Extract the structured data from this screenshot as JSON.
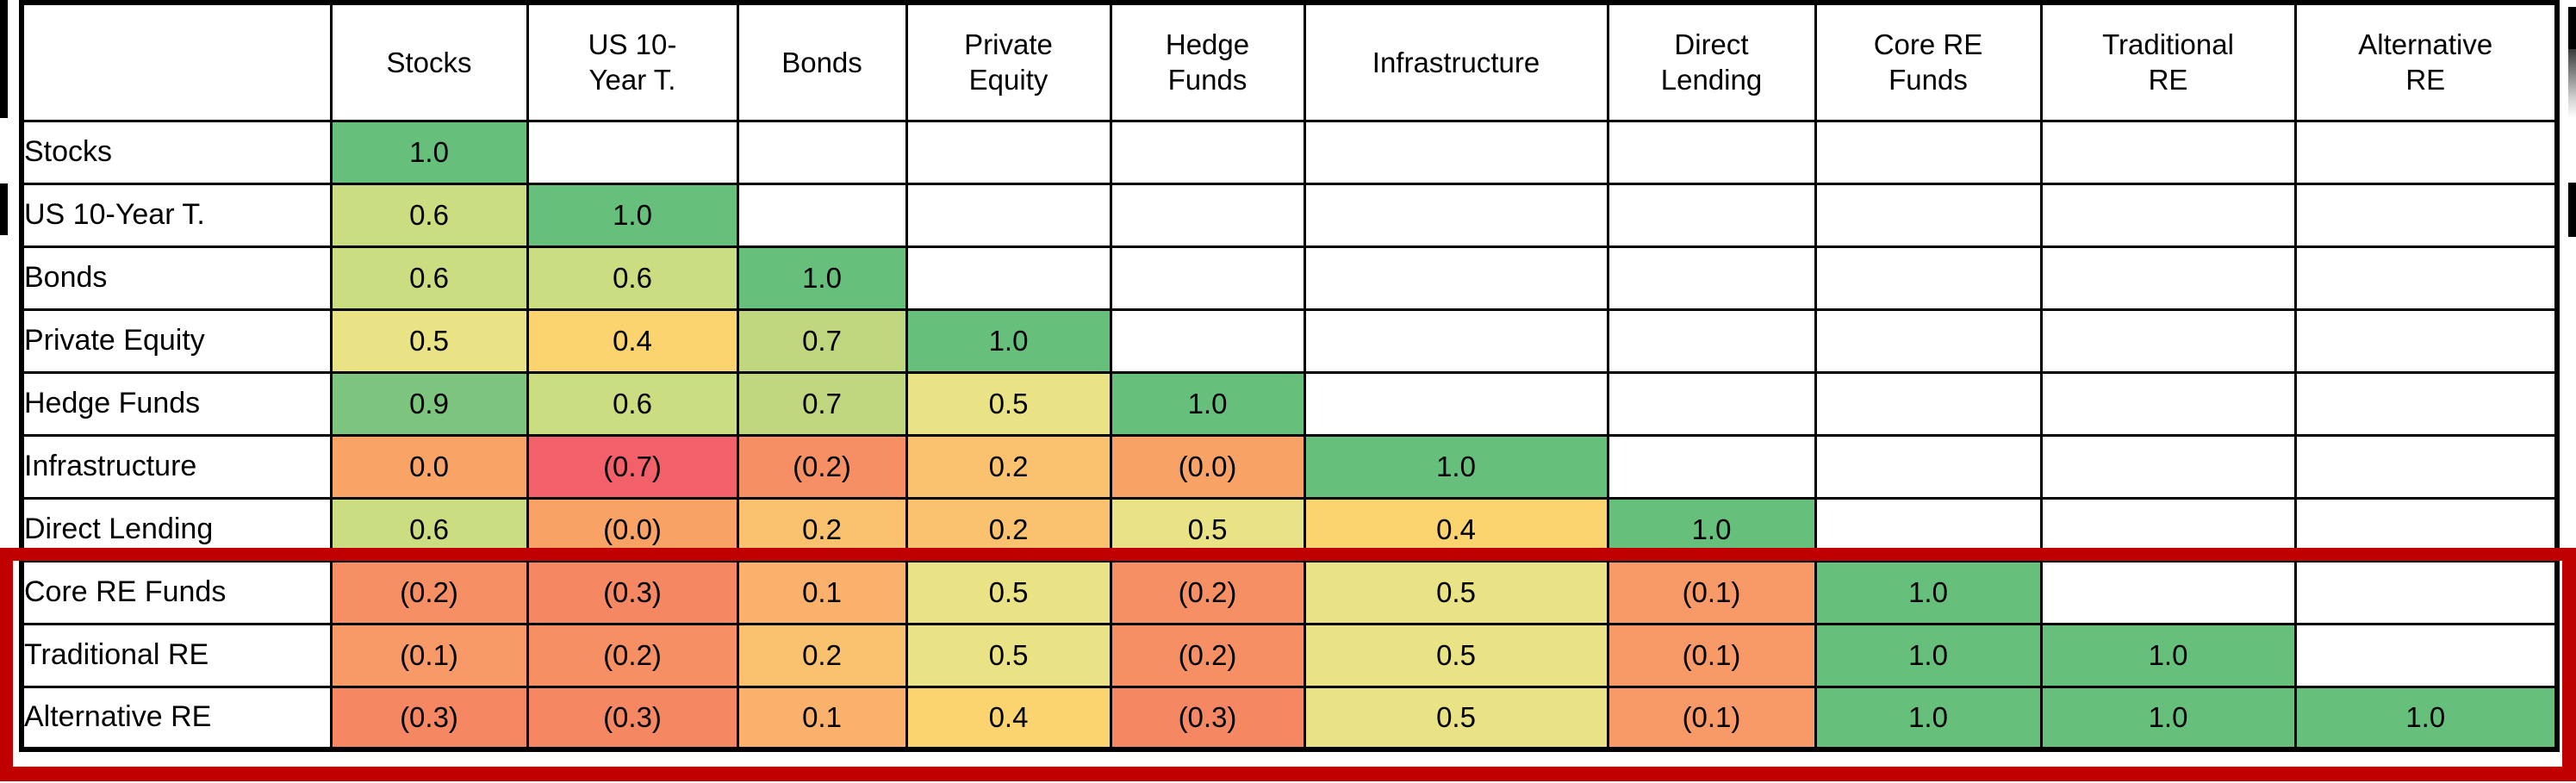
{
  "chart_data": {
    "type": "heatmap",
    "subtype": "correlation-matrix",
    "columns": [
      "Stocks",
      "US 10-\nYear T.",
      "Bonds",
      "Private\nEquity",
      "Hedge\nFunds",
      "Infrastructure",
      "Direct\nLending",
      "Core RE\nFunds",
      "Traditional\nRE",
      "Alternative\nRE"
    ],
    "row_labels": [
      "Stocks",
      "US 10-Year T.",
      "Bonds",
      "Private Equity",
      "Hedge Funds",
      "Infrastructure",
      "Direct Lending",
      "Core RE Funds",
      "Traditional RE",
      "Alternative RE"
    ],
    "cells_display": [
      [
        "1.0"
      ],
      [
        "0.6",
        "1.0"
      ],
      [
        "0.6",
        "0.6",
        "1.0"
      ],
      [
        "0.5",
        "0.4",
        "0.7",
        "1.0"
      ],
      [
        "0.9",
        "0.6",
        "0.7",
        "0.5",
        "1.0"
      ],
      [
        "0.0",
        "(0.7)",
        "(0.2)",
        "0.2",
        "(0.0)",
        "1.0"
      ],
      [
        "0.6",
        "(0.0)",
        "0.2",
        "0.2",
        "0.5",
        "0.4",
        "1.0"
      ],
      [
        "(0.2)",
        "(0.3)",
        "0.1",
        "0.5",
        "(0.2)",
        "0.5",
        "(0.1)",
        "1.0"
      ],
      [
        "(0.1)",
        "(0.2)",
        "0.2",
        "0.5",
        "(0.2)",
        "0.5",
        "(0.1)",
        "1.0",
        "1.0"
      ],
      [
        "(0.3)",
        "(0.3)",
        "0.1",
        "0.4",
        "(0.3)",
        "0.5",
        "(0.1)",
        "1.0",
        "1.0",
        "1.0"
      ]
    ],
    "cells_numeric": [
      [
        1.0
      ],
      [
        0.6,
        1.0
      ],
      [
        0.6,
        0.6,
        1.0
      ],
      [
        0.5,
        0.4,
        0.7,
        1.0
      ],
      [
        0.9,
        0.6,
        0.7,
        0.5,
        1.0
      ],
      [
        0.0,
        -0.7,
        -0.2,
        0.2,
        -0.0,
        1.0
      ],
      [
        0.6,
        -0.0,
        0.2,
        0.2,
        0.5,
        0.4,
        1.0
      ],
      [
        -0.2,
        -0.3,
        0.1,
        0.5,
        -0.2,
        0.5,
        -0.1,
        1.0
      ],
      [
        -0.1,
        -0.2,
        0.2,
        0.5,
        -0.2,
        0.5,
        -0.1,
        1.0,
        1.0
      ],
      [
        -0.3,
        -0.3,
        0.1,
        0.4,
        -0.3,
        0.5,
        -0.1,
        1.0,
        1.0,
        1.0
      ]
    ],
    "negative_notation": "parentheses",
    "value_colors": {
      "1.0": "#66BF7B",
      "0.9": "#7DC57E",
      "0.7": "#C0D67F",
      "0.6": "#CBDD81",
      "0.5": "#EAE385",
      "0.4": "#FBD46F",
      "0.2": "#FAC26E",
      "0.1": "#F9B16B",
      "0.0": "#F8A466",
      "(0.0)": "#F8A265",
      "(0.1)": "#F79A68",
      "(0.2)": "#F69064",
      "(0.3)": "#F58863",
      "(0.7)": "#F2606A"
    },
    "empty_cell_color": "#FFFFFF",
    "grid_line_color": "#000000",
    "highlight": {
      "rows": [
        "Core RE Funds",
        "Traditional RE",
        "Alternative RE"
      ],
      "box_color": "#C00000"
    }
  }
}
